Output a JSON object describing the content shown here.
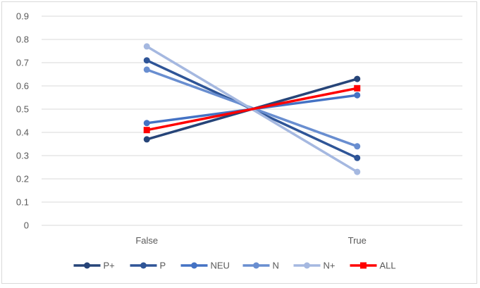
{
  "chart_data": {
    "type": "line",
    "categories": [
      "False",
      "True"
    ],
    "ylim": [
      0,
      0.9
    ],
    "yticks": [
      0,
      0.1,
      0.2,
      0.3,
      0.4,
      0.5,
      0.6,
      0.7,
      0.8,
      0.9
    ],
    "ytick_labels": [
      "0",
      "0.1",
      "0.2",
      "0.3",
      "0.4",
      "0.5",
      "0.6",
      "0.7",
      "0.8",
      "0.9"
    ],
    "grid": true,
    "legend_position": "bottom",
    "series": [
      {
        "name": "P+",
        "values": [
          0.37,
          0.63
        ],
        "color": "#264478",
        "marker": "circle"
      },
      {
        "name": "P",
        "values": [
          0.71,
          0.29
        ],
        "color": "#2F5597",
        "marker": "circle"
      },
      {
        "name": "NEU",
        "values": [
          0.44,
          0.56
        ],
        "color": "#4472C4",
        "marker": "circle"
      },
      {
        "name": "N",
        "values": [
          0.67,
          0.34
        ],
        "color": "#698ED0",
        "marker": "circle"
      },
      {
        "name": "N+",
        "values": [
          0.77,
          0.23
        ],
        "color": "#A5B8E0",
        "marker": "circle"
      },
      {
        "name": "ALL",
        "values": [
          0.41,
          0.59
        ],
        "color": "#FF0000",
        "marker": "square"
      }
    ]
  }
}
